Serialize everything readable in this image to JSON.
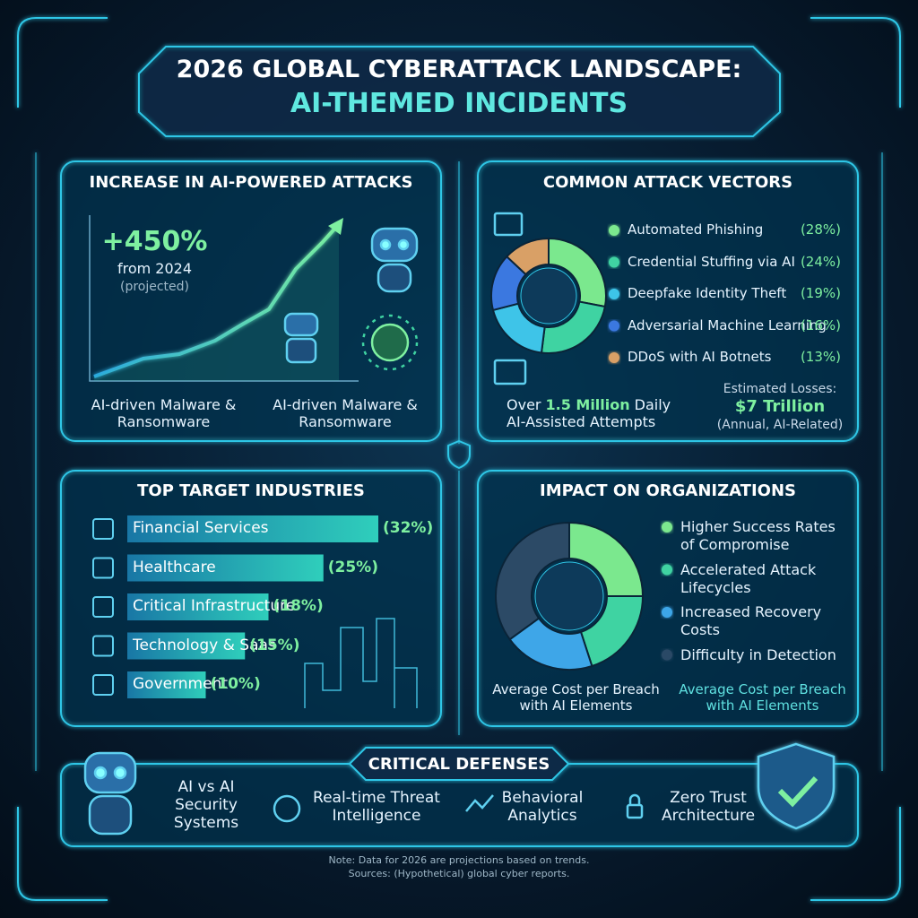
{
  "header": {
    "title": "2026 GLOBAL CYBERATTACK LANDSCAPE:",
    "subtitle": "AI-THEMED INCIDENTS"
  },
  "growth": {
    "title": "INCREASE IN AI-POWERED ATTACKS",
    "figure": "+450%",
    "basis": "from 2024",
    "qualifier": "(projected)",
    "bullets": [
      "AI-driven Malware & Ransomware",
      "AI-driven Malware & Ransomware"
    ]
  },
  "vector_stats": {
    "attempts": [
      "Over",
      "1.5 Million",
      "Daily",
      "AI-Assisted Attempts"
    ],
    "losses_label": "Estimated Losses:",
    "losses_value": "$7 Trillion",
    "losses_note": "(Annual, AI-Related)"
  },
  "impact_notes": [
    "Average Cost per Breach with AI Elements",
    "Average Cost per Breach with AI Elements"
  ],
  "defenses": {
    "title": "CRITICAL DEFENSES",
    "items": [
      "AI vs AI Security Systems",
      "Real-time Threat Intelligence",
      "Behavioral Analytics",
      "Zero Trust Architecture"
    ]
  },
  "note": [
    "Note: Data for 2026 are projections based on trends.",
    "Sources: (Hypothetical) global cyber reports."
  ],
  "chart_data": [
    {
      "type": "pie",
      "title": "COMMON ATTACK VECTORS",
      "categories": [
        "Automated Phishing",
        "Credential Stuffing via AI",
        "Deepfake Identity Theft",
        "Adversarial Machine Learning",
        "DDoS with AI Botnets"
      ],
      "values": [
        28,
        24,
        19,
        16,
        13
      ],
      "value_labels": [
        "(28%)",
        "(24%)",
        "(19%)",
        "(16%)",
        "(13%)"
      ],
      "colors": [
        "#7be88e",
        "#3fd3a2",
        "#3ec4e8",
        "#3b78e0",
        "#d9a066"
      ]
    },
    {
      "type": "bar",
      "title": "TOP TARGET INDUSTRIES",
      "categories": [
        "Financial Services",
        "Healthcare",
        "Critical Infrastructure",
        "Technology & Saas",
        "Government"
      ],
      "values": [
        32,
        25,
        18,
        15,
        10
      ],
      "value_labels": [
        "(32%)",
        "(25%)",
        "(18%)",
        "(15%)",
        "(10%)"
      ],
      "color": "#2fd0d8"
    },
    {
      "type": "pie",
      "title": "IMPACT ON ORGANIZATIONS",
      "categories": [
        "Higher Success Rates of Compromise",
        "Accelerated Attack Lifecycles",
        "Increased Recovery Costs",
        "Difficulty in Detection"
      ],
      "values": [
        25,
        20,
        20,
        35
      ],
      "colors": [
        "#7be88e",
        "#3fd3a2",
        "#3ea6e8",
        "#2c4a66"
      ]
    }
  ]
}
